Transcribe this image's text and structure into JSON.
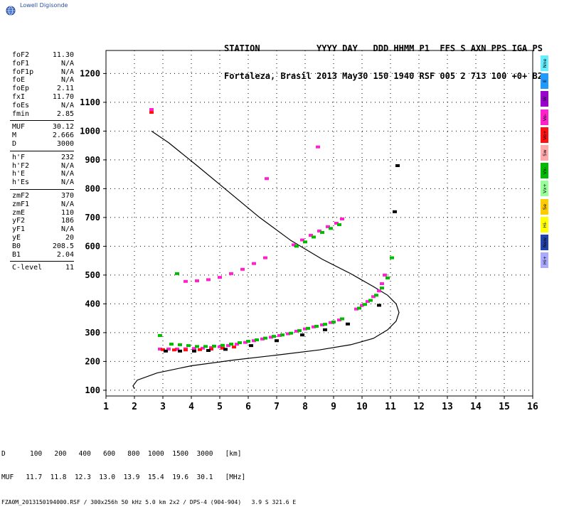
{
  "logo": {
    "text": "Lowell Digisonde"
  },
  "header": {
    "line1": "STATION           YYYY DAY   DDD HHMM P1  FFS S AXN PPS IGA PS",
    "line2": "Fortaleza, Brasil 2013 May30 150 1940 RSF 005 2 713 100 +0+ B2"
  },
  "params": {
    "group1": [
      {
        "label": "foF2",
        "value": "11.30"
      },
      {
        "label": "foF1",
        "value": "N/A"
      },
      {
        "label": "foF1p",
        "value": "N/A"
      },
      {
        "label": "foE",
        "value": "N/A"
      },
      {
        "label": "foEp",
        "value": "2.11"
      },
      {
        "label": "fxI",
        "value": "11.70"
      },
      {
        "label": "foEs",
        "value": "N/A"
      },
      {
        "label": "fmin",
        "value": "2.85"
      }
    ],
    "group2": [
      {
        "label": "MUF",
        "value": "30.12"
      },
      {
        "label": "M",
        "value": "2.666"
      },
      {
        "label": "D",
        "value": "3000"
      }
    ],
    "group3": [
      {
        "label": "h'F",
        "value": "232"
      },
      {
        "label": "h'F2",
        "value": "N/A"
      },
      {
        "label": "h'E",
        "value": "N/A"
      },
      {
        "label": "h'Es",
        "value": "N/A"
      }
    ],
    "group4": [
      {
        "label": "zmF2",
        "value": "370"
      },
      {
        "label": "zmF1",
        "value": "N/A"
      },
      {
        "label": "zmE",
        "value": "110"
      },
      {
        "label": "yF2",
        "value": "186"
      },
      {
        "label": "yF1",
        "value": "N/A"
      },
      {
        "label": "yE",
        "value": "20"
      },
      {
        "label": "B0",
        "value": "208.5"
      },
      {
        "label": "B1",
        "value": "2.04"
      }
    ],
    "group5": [
      {
        "label": "C-level",
        "value": "11"
      }
    ]
  },
  "legend": [
    {
      "label": "Nne",
      "color": "#66eeff"
    },
    {
      "label": "E",
      "color": "#2299ff"
    },
    {
      "label": "W",
      "color": "#9900cc"
    },
    {
      "label": "Vo-",
      "color": "#ff22cc"
    },
    {
      "label": "Vo+",
      "color": "#ff1111"
    },
    {
      "label": "Sw",
      "color": "#ffaaaa"
    },
    {
      "label": "Vx-",
      "color": "#00bb00"
    },
    {
      "label": "Vx+",
      "color": "#99ff99"
    },
    {
      "label": "Se",
      "color": "#ffcc00"
    },
    {
      "label": "Hi-",
      "color": "#ffff00"
    },
    {
      "label": "New",
      "color": "#2244aa"
    },
    {
      "label": "Hi+",
      "color": "#aaaaff"
    }
  ],
  "footer": {
    "line1": "D      100   200   400   600   800  1000  1500  3000   [km]",
    "line2": "MUF   11.7  11.8  12.3  13.0  13.9  15.4  19.6  30.1   [MHz]",
    "line3": "FZA0M_2013150194000.RSF / 300x256h 50 kHz 5.0 km 2x2 / DPS-4 (904-904)   3.9 S 321.6 E"
  },
  "chart_data": {
    "type": "scatter",
    "xlim": [
      1,
      16
    ],
    "ylim": [
      80,
      1280
    ],
    "x_ticks": [
      1,
      2,
      3,
      4,
      5,
      6,
      7,
      8,
      9,
      10,
      11,
      12,
      13,
      14,
      15,
      16
    ],
    "y_ticks": [
      100,
      200,
      300,
      400,
      500,
      600,
      700,
      800,
      900,
      1000,
      1100,
      1200
    ],
    "grid": true,
    "true_height_profile": {
      "x": [
        2.0,
        1.95,
        2.1,
        2.8,
        4.0,
        5.5,
        7.0,
        8.5,
        9.6,
        10.4,
        10.9,
        11.2,
        11.3,
        11.2,
        10.9,
        10.4,
        9.6,
        8.6,
        7.5,
        6.4,
        5.3,
        4.2,
        3.2,
        2.6
      ],
      "y": [
        105,
        115,
        135,
        160,
        185,
        205,
        222,
        240,
        258,
        280,
        310,
        340,
        370,
        400,
        430,
        460,
        505,
        555,
        620,
        700,
        790,
        880,
        960,
        1000
      ]
    },
    "series": [
      {
        "name": "Vo-",
        "color": "#ff22cc",
        "x": [
          2.9,
          3.2,
          3.5,
          3.8,
          4.1,
          4.4,
          4.7,
          5.0,
          5.3,
          5.6,
          5.9,
          6.2,
          6.5,
          6.8,
          7.1,
          7.4,
          7.7,
          8.0,
          8.3,
          8.6,
          8.9,
          9.2,
          9.8,
          10.0,
          10.2,
          10.4,
          10.6,
          10.7,
          10.8,
          3.8,
          4.2,
          4.6,
          5.0,
          5.4,
          5.8,
          6.2,
          6.6,
          7.6,
          7.9,
          8.2,
          8.5,
          8.8,
          9.1,
          9.3,
          2.6,
          6.65,
          8.45
        ],
        "y": [
          243,
          243,
          243,
          244,
          245,
          246,
          248,
          251,
          255,
          260,
          266,
          272,
          278,
          284,
          290,
          296,
          305,
          313,
          320,
          327,
          335,
          344,
          382,
          395,
          408,
          425,
          445,
          470,
          500,
          478,
          480,
          484,
          492,
          505,
          520,
          540,
          560,
          605,
          622,
          638,
          653,
          668,
          680,
          695,
          1075,
          835,
          945
        ]
      },
      {
        "name": "Vx-",
        "color": "#00bb00",
        "x": [
          3.3,
          3.6,
          3.9,
          4.2,
          4.5,
          4.8,
          5.1,
          5.4,
          5.7,
          6.0,
          6.3,
          6.6,
          6.9,
          7.2,
          7.5,
          7.8,
          8.1,
          8.4,
          8.7,
          9.0,
          9.3,
          9.9,
          10.1,
          10.3,
          10.5,
          10.7,
          10.9,
          11.05,
          3.5,
          7.7,
          8.0,
          8.3,
          8.6,
          8.9,
          9.2,
          2.9
        ],
        "y": [
          260,
          258,
          255,
          252,
          252,
          253,
          256,
          260,
          265,
          270,
          275,
          281,
          287,
          292,
          298,
          307,
          315,
          322,
          329,
          337,
          348,
          385,
          398,
          412,
          430,
          455,
          490,
          560,
          505,
          600,
          615,
          632,
          648,
          662,
          675,
          290
        ]
      },
      {
        "name": "Vo+",
        "color": "#ff1111",
        "x": [
          3.0,
          3.4,
          3.8,
          4.3,
          4.7,
          5.1,
          5.5,
          2.6
        ],
        "y": [
          241,
          240,
          240,
          241,
          243,
          246,
          250,
          1065
        ]
      },
      {
        "name": "other",
        "color": "#000000",
        "x": [
          3.1,
          3.6,
          4.1,
          4.6,
          5.2,
          6.1,
          7.0,
          7.9,
          8.7,
          9.5,
          10.6,
          11.15,
          11.25
        ],
        "y": [
          236,
          236,
          236,
          238,
          242,
          255,
          272,
          292,
          310,
          330,
          395,
          720,
          880
        ]
      }
    ]
  }
}
